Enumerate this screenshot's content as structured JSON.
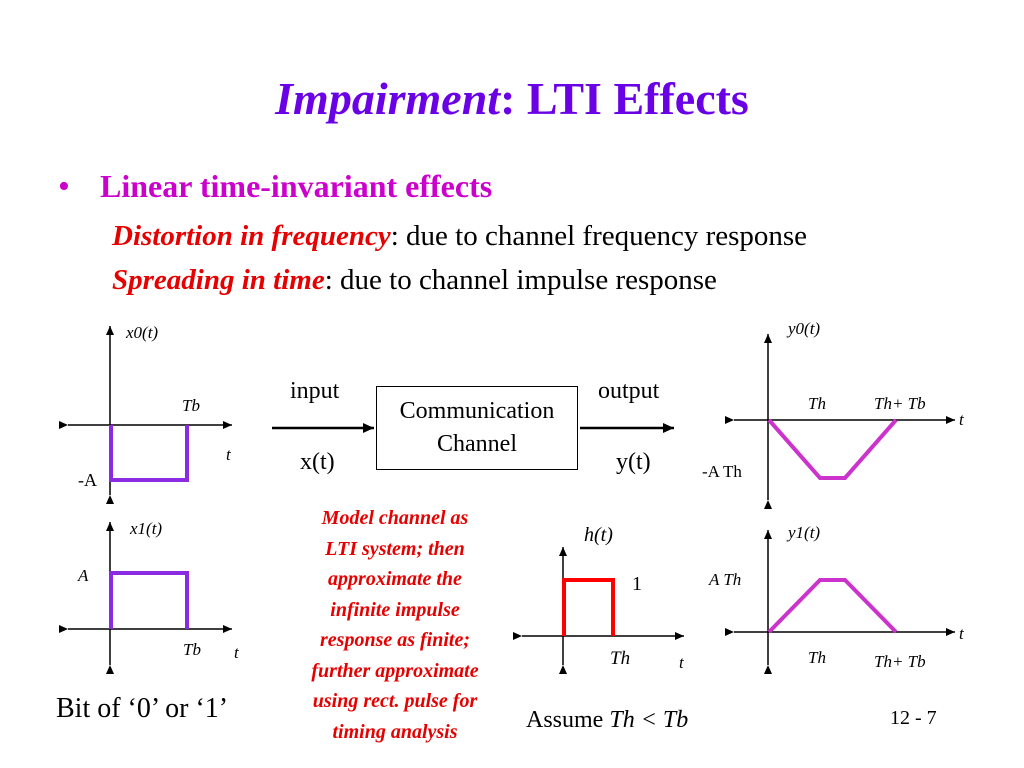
{
  "slide": {
    "title_italic": "Impairment",
    "title_rest": ": LTI Effects",
    "bullet": "Linear time-invariant effects",
    "line1_key": "Distortion in frequency",
    "line1_rest": ": due to channel frequency response",
    "line2_key": "Spreading in time",
    "line2_rest": ": due to channel impulse response",
    "page_number": "12 - 7"
  },
  "diagram": {
    "channel_box": [
      "Communication",
      "Channel"
    ],
    "input_label": "input",
    "output_label": "output",
    "input_signal": "x(t)",
    "output_signal": "y(t)",
    "note": [
      "Model channel as",
      "LTI system; then",
      "approximate the",
      "infinite impulse",
      "response as finite;",
      "further approximate",
      "using rect. pulse for",
      "timing analysis"
    ],
    "bit_label": "Bit of ‘0’ or ‘1’",
    "assume_prefix": "Assume",
    "assume_expr": "Th < Tb",
    "graphs": {
      "x0": {
        "ylabel": "x0(t)",
        "level": "-A",
        "t_mark": "Tb",
        "axis": "t"
      },
      "x1": {
        "ylabel": "x1(t)",
        "level": "A",
        "t_mark": "Tb",
        "axis": "t"
      },
      "h": {
        "ylabel": "h(t)",
        "level": "1",
        "t_mark": "Th",
        "axis": "t"
      },
      "y0": {
        "ylabel": "y0(t)",
        "level": "-A Th",
        "t_mark1": "Th",
        "t_mark2": "Th+ Tb",
        "axis": "t"
      },
      "y1": {
        "ylabel": "y1(t)",
        "level": "A Th",
        "t_mark1": "Th",
        "t_mark2": "Th+ Tb",
        "axis": "t"
      }
    }
  },
  "colors": {
    "title": "#6a00e6",
    "bullet": "#cc00cc",
    "emphasis": "#e60000",
    "signal": "#8a2be2",
    "output_signal": "#cc33cc",
    "impulse": "#ff0000"
  }
}
